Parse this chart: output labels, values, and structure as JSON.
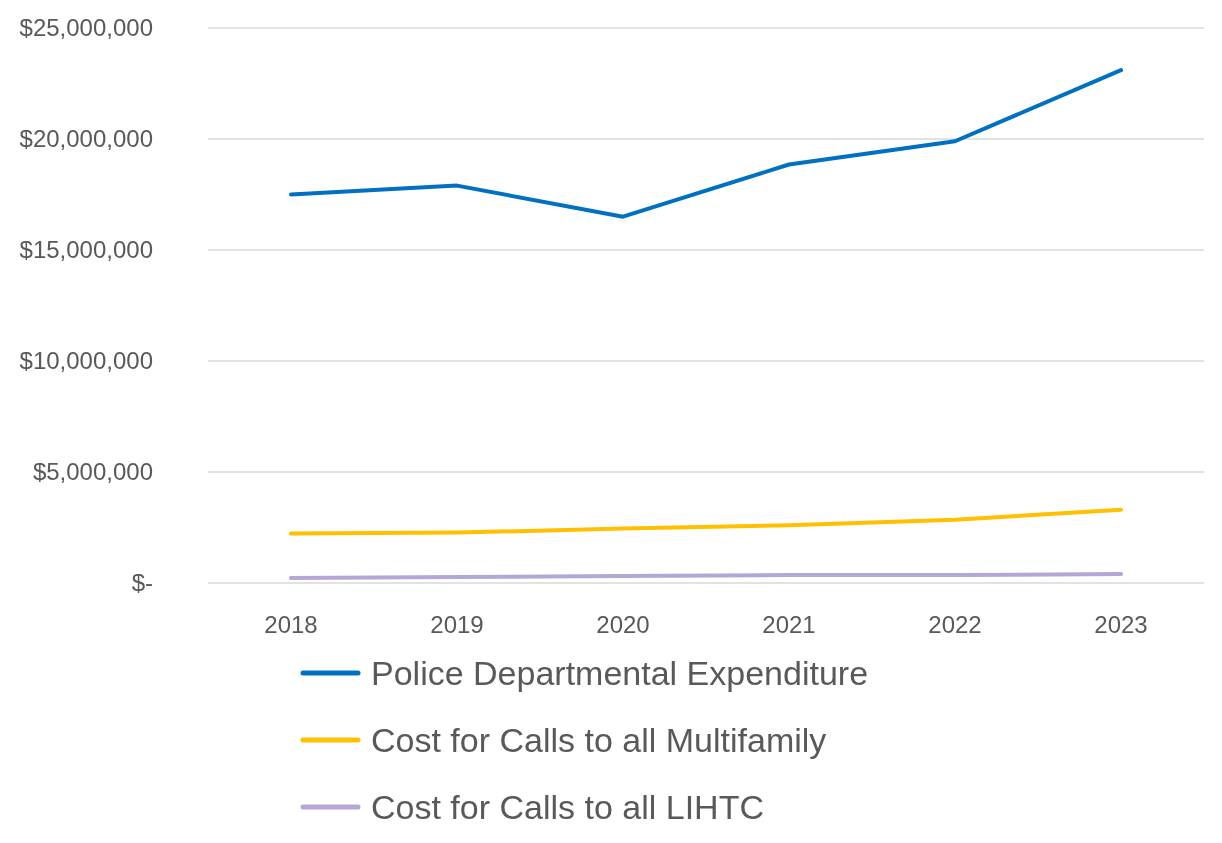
{
  "chart_data": {
    "type": "line",
    "categories": [
      "2018",
      "2019",
      "2020",
      "2021",
      "2022",
      "2023"
    ],
    "series": [
      {
        "name": "Police Departmental Expenditure",
        "color": "#0070c0",
        "values": [
          17500000,
          17900000,
          16500000,
          18850000,
          19900000,
          23100000
        ]
      },
      {
        "name": "Cost for Calls to all Multifamily",
        "color": "#ffc000",
        "values": [
          2230000,
          2270000,
          2450000,
          2600000,
          2850000,
          3300000
        ]
      },
      {
        "name": "Cost for Calls to all LIHTC",
        "color": "#b4a7d6",
        "values": [
          220000,
          270000,
          310000,
          360000,
          360000,
          400000
        ]
      }
    ],
    "ylim": [
      0,
      25000000
    ],
    "yticks": [
      {
        "value": 0,
        "label": "$-"
      },
      {
        "value": 5000000,
        "label": "$5,000,000"
      },
      {
        "value": 10000000,
        "label": "$10,000,000"
      },
      {
        "value": 15000000,
        "label": "$15,000,000"
      },
      {
        "value": 20000000,
        "label": "$20,000,000"
      },
      {
        "value": 25000000,
        "label": "$25,000,000"
      }
    ],
    "grid": "y",
    "legend": "bottom",
    "line_style": "solid",
    "marker": "none"
  }
}
